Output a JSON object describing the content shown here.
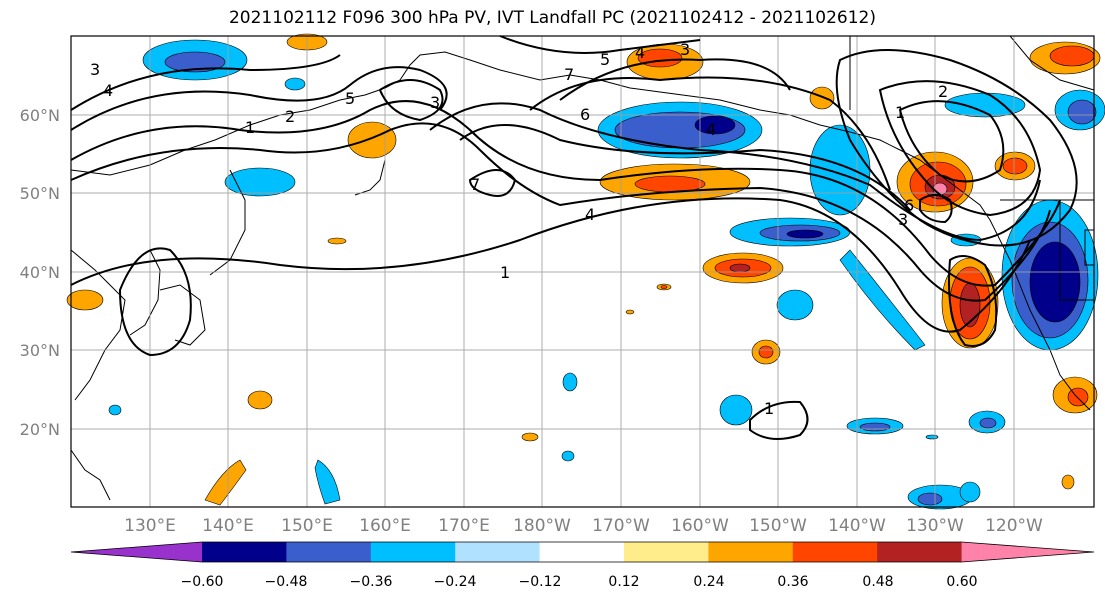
{
  "title": "2021102112 F096 300 hPa PV, IVT Landfall PC (2021102412 - 2021102612)",
  "lat_labels": [
    "60°N",
    "50°N",
    "40°N",
    "30°N",
    "20°N"
  ],
  "lon_labels": [
    "130°E",
    "140°E",
    "150°E",
    "160°E",
    "170°E",
    "180°W",
    "170°W",
    "160°W",
    "150°W",
    "140°W",
    "130°W",
    "120°W"
  ],
  "contour_labels": [
    "1",
    "2",
    "3",
    "4",
    "5",
    "6",
    "7"
  ],
  "colorbar": {
    "ticks": [
      "−0.60",
      "−0.48",
      "−0.36",
      "−0.24",
      "−0.12",
      "0.12",
      "0.24",
      "0.36",
      "0.48",
      "0.60"
    ],
    "colors": [
      "#9932cc",
      "#00008b",
      "#3a5fcd",
      "#00bfff",
      "#b0e2ff",
      "#ffffff",
      "#ffec8b",
      "#ffa500",
      "#ff4500",
      "#b22222",
      "#ff82ab"
    ]
  }
}
